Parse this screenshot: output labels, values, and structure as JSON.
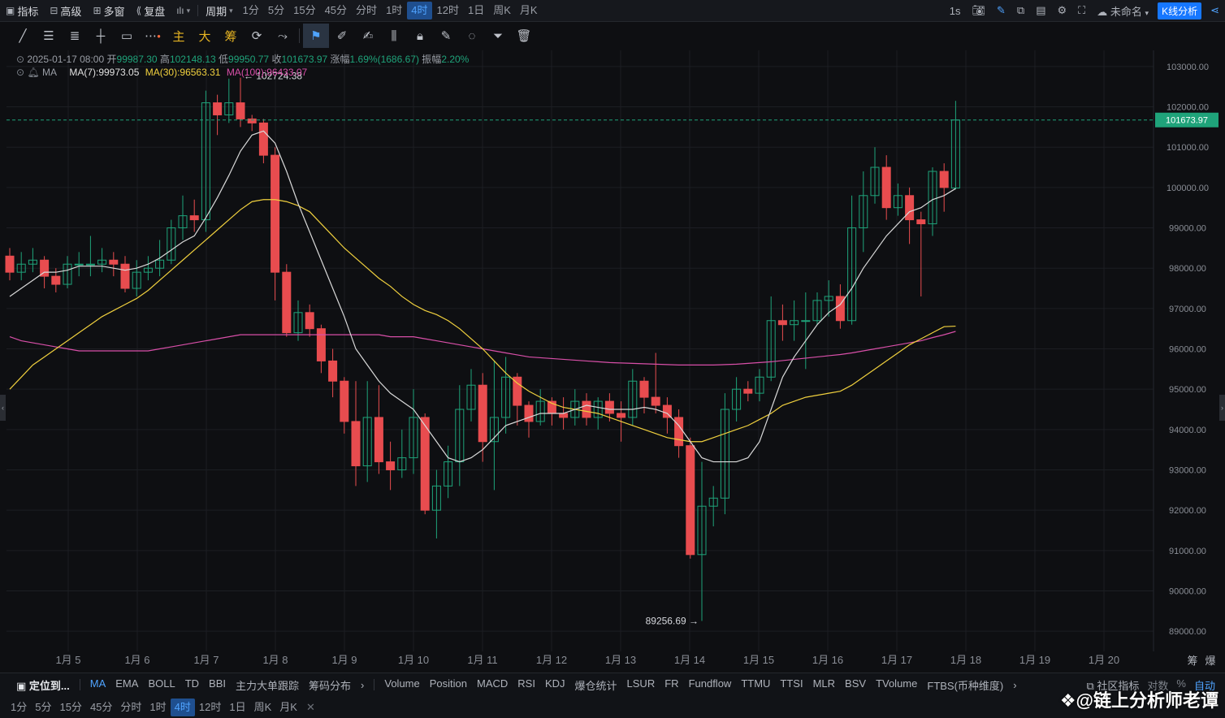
{
  "topbar": {
    "left_items": [
      {
        "icon": "indicator-icon",
        "label": "指标"
      },
      {
        "icon": "advanced-icon",
        "label": "高级"
      },
      {
        "icon": "multi-window-icon",
        "label": "多窗"
      },
      {
        "icon": "replay-icon",
        "label": "复盘"
      },
      {
        "icon": "chart-type-icon",
        "label": ""
      },
      {
        "icon": "",
        "label": "周期"
      }
    ],
    "intervals": [
      "1分",
      "5分",
      "15分",
      "45分",
      "分时",
      "1时",
      "4时",
      "12时",
      "1日",
      "周K",
      "月K"
    ],
    "active_interval": "4时",
    "right_label_1s": "1s",
    "unnamed_label": "未命名",
    "kline_button": "K线分析"
  },
  "drawtools": {
    "text_tools": [
      "主",
      "大",
      "筹"
    ]
  },
  "info": {
    "datetime": "2025-01-17 08:00",
    "open_label": "开",
    "open": "99987.30",
    "high_label": "高",
    "high": "102148.13",
    "low_label": "低",
    "low": "99950.77",
    "close_label": "收",
    "close": "101673.97",
    "change_label": "涨幅",
    "change": "1.69%(1686.67)",
    "amp_label": "振幅",
    "amp": "2.20%",
    "ma_label": "MA",
    "ma7": "MA(7):99973.05",
    "ma30": "MA(30):96563.31",
    "ma100": "MA(100):96433.07"
  },
  "chart_data": {
    "type": "candlestick",
    "y_ticks": [
      103000,
      102000,
      101000,
      100000,
      99000,
      98000,
      97000,
      96000,
      95000,
      94000,
      93000,
      92000,
      91000,
      90000,
      89000
    ],
    "ylim": [
      88500,
      103400
    ],
    "x_labels": [
      "1月 5",
      "1月 6",
      "1月 7",
      "1月 8",
      "1月 9",
      "1月 10",
      "1月 11",
      "1月 12",
      "1月 13",
      "1月 14",
      "1月 15",
      "1月 16",
      "1月 17",
      "1月 18",
      "1月 19",
      "1月 20"
    ],
    "current_price": "101673.97",
    "high_annotation": "← 102724.38",
    "low_annotation": "89256.69 →",
    "candles": [
      [
        98300,
        97900,
        98500,
        97700
      ],
      [
        97900,
        98100,
        98400,
        97700
      ],
      [
        98100,
        98200,
        98500,
        97900
      ],
      [
        98200,
        97800,
        98300,
        97500
      ],
      [
        97800,
        97600,
        98000,
        97400
      ],
      [
        97600,
        98100,
        98300,
        97500
      ],
      [
        98100,
        98100,
        98400,
        97800
      ],
      [
        98100,
        98100,
        98800,
        97800
      ],
      [
        98100,
        98200,
        98500,
        97900
      ],
      [
        98200,
        98100,
        98400,
        97800
      ],
      [
        98100,
        97500,
        98300,
        97400
      ],
      [
        97500,
        97900,
        98200,
        97300
      ],
      [
        97900,
        98000,
        98300,
        97700
      ],
      [
        98000,
        98200,
        98700,
        97800
      ],
      [
        98200,
        99000,
        99200,
        98100
      ],
      [
        99000,
        99300,
        99800,
        98700
      ],
      [
        99300,
        99200,
        99700,
        98900
      ],
      [
        99200,
        102100,
        102400,
        98900
      ],
      [
        102100,
        101800,
        102300,
        101300
      ],
      [
        101800,
        102100,
        102700,
        101600
      ],
      [
        102100,
        101700,
        102724,
        101500
      ],
      [
        101700,
        101600,
        101800,
        101400
      ],
      [
        101600,
        100800,
        101700,
        100600
      ],
      [
        100800,
        97900,
        101000,
        97200
      ],
      [
        97900,
        96400,
        98100,
        96300
      ],
      [
        96400,
        96900,
        97200,
        96200
      ],
      [
        96900,
        96500,
        97100,
        96300
      ],
      [
        96500,
        95700,
        96600,
        95400
      ],
      [
        95700,
        95200,
        96000,
        94800
      ],
      [
        95200,
        94200,
        95300,
        93900
      ],
      [
        94200,
        93100,
        95200,
        92600
      ],
      [
        93100,
        94300,
        95200,
        92700
      ],
      [
        94300,
        93200,
        95100,
        92900
      ],
      [
        93200,
        93000,
        93700,
        92500
      ],
      [
        93000,
        93300,
        94000,
        92800
      ],
      [
        93300,
        94300,
        95000,
        92900
      ],
      [
        94300,
        92000,
        94400,
        91900
      ],
      [
        92000,
        92600,
        93000,
        91300
      ],
      [
        92600,
        93200,
        93600,
        92300
      ],
      [
        93200,
        94500,
        95100,
        92600
      ],
      [
        94500,
        95100,
        95500,
        94200
      ],
      [
        95100,
        93700,
        95400,
        93200
      ],
      [
        93700,
        94300,
        95700,
        92500
      ],
      [
        94300,
        95300,
        95800,
        93900
      ],
      [
        95300,
        94600,
        95400,
        94100
      ],
      [
        94600,
        94200,
        94700,
        93800
      ],
      [
        94200,
        94700,
        95000,
        94100
      ],
      [
        94700,
        94400,
        94800,
        94100
      ],
      [
        94400,
        94300,
        94800,
        94000
      ],
      [
        94300,
        94700,
        95000,
        94100
      ],
      [
        94700,
        94300,
        94900,
        94100
      ],
      [
        94300,
        94700,
        94800,
        94000
      ],
      [
        94700,
        94400,
        94900,
        94200
      ],
      [
        94400,
        94300,
        94700,
        93700
      ],
      [
        94300,
        95200,
        95500,
        94100
      ],
      [
        95200,
        94800,
        95300,
        94400
      ],
      [
        94800,
        94600,
        95900,
        94400
      ],
      [
        94600,
        94300,
        94800,
        93900
      ],
      [
        94300,
        93600,
        94500,
        93300
      ],
      [
        93600,
        90900,
        93800,
        90800
      ],
      [
        90900,
        92100,
        93200,
        89256
      ],
      [
        92100,
        92300,
        92600,
        91600
      ],
      [
        92300,
        94500,
        94900,
        91900
      ],
      [
        94500,
        95000,
        95300,
        94200
      ],
      [
        95000,
        94900,
        95200,
        94700
      ],
      [
        94900,
        95300,
        95500,
        94700
      ],
      [
        95300,
        96700,
        97300,
        95200
      ],
      [
        96700,
        96600,
        97100,
        96200
      ],
      [
        96600,
        96700,
        97200,
        96200
      ],
      [
        96700,
        96700,
        97400,
        95500
      ],
      [
        96700,
        97200,
        97400,
        96600
      ],
      [
        97200,
        97300,
        97700,
        96800
      ],
      [
        97300,
        96700,
        97600,
        96500
      ],
      [
        96700,
        99000,
        99800,
        96600
      ],
      [
        99000,
        99800,
        100400,
        98400
      ],
      [
        99800,
        100500,
        101000,
        99600
      ],
      [
        100500,
        99500,
        100800,
        99200
      ],
      [
        99500,
        99800,
        100100,
        99300
      ],
      [
        99800,
        99200,
        100000,
        98600
      ],
      [
        99200,
        99100,
        99400,
        97300
      ],
      [
        99100,
        100400,
        100500,
        98800
      ],
      [
        100400,
        100000,
        100600,
        99400
      ],
      [
        99987,
        101674,
        102148,
        99950
      ]
    ],
    "ma7": [
      97300,
      97500,
      97700,
      97900,
      97900,
      97950,
      98050,
      98050,
      98050,
      98000,
      97950,
      98000,
      98100,
      98250,
      98450,
      98650,
      98800,
      99250,
      99750,
      100300,
      100900,
      101300,
      101400,
      101100,
      100400,
      99600,
      98900,
      98200,
      97500,
      96800,
      96000,
      95600,
      95200,
      94900,
      94700,
      94500,
      94100,
      93700,
      93300,
      93200,
      93300,
      93500,
      93800,
      94100,
      94200,
      94300,
      94400,
      94400,
      94400,
      94500,
      94600,
      94550,
      94500,
      94500,
      94500,
      94550,
      94500,
      94400,
      94100,
      93700,
      93300,
      93200,
      93200,
      93200,
      93300,
      93700,
      94500,
      95300,
      95800,
      96200,
      96600,
      96900,
      97100,
      97500,
      98000,
      98400,
      98800,
      99100,
      99400,
      99500,
      99700,
      99800,
      99973
    ],
    "ma30": [
      95000,
      95300,
      95600,
      95800,
      96000,
      96200,
      96400,
      96600,
      96800,
      96950,
      97100,
      97250,
      97450,
      97700,
      97950,
      98200,
      98450,
      98700,
      98950,
      99200,
      99450,
      99650,
      99700,
      99700,
      99650,
      99550,
      99400,
      99100,
      98800,
      98500,
      98250,
      98000,
      97750,
      97550,
      97300,
      97100,
      96950,
      96850,
      96700,
      96500,
      96250,
      96000,
      95700,
      95400,
      95150,
      94950,
      94800,
      94650,
      94550,
      94500,
      94450,
      94400,
      94300,
      94200,
      94100,
      94000,
      93900,
      93800,
      93750,
      93700,
      93700,
      93800,
      93900,
      94000,
      94100,
      94250,
      94400,
      94600,
      94700,
      94800,
      94850,
      94900,
      94950,
      95100,
      95300,
      95500,
      95700,
      95900,
      96100,
      96250,
      96400,
      96550,
      96563
    ],
    "ma100": [
      96300,
      96200,
      96150,
      96100,
      96050,
      96000,
      95950,
      95950,
      95950,
      95950,
      95950,
      95950,
      95950,
      96000,
      96050,
      96100,
      96150,
      96200,
      96250,
      96300,
      96350,
      96350,
      96350,
      96350,
      96350,
      96350,
      96350,
      96350,
      96350,
      96350,
      96350,
      96350,
      96350,
      96300,
      96300,
      96300,
      96250,
      96200,
      96150,
      96100,
      96050,
      96000,
      95950,
      95900,
      95850,
      95800,
      95780,
      95760,
      95740,
      95720,
      95700,
      95680,
      95660,
      95650,
      95640,
      95630,
      95620,
      95610,
      95600,
      95600,
      95600,
      95600,
      95610,
      95620,
      95640,
      95660,
      95680,
      95710,
      95740,
      95770,
      95800,
      95830,
      95860,
      95900,
      95950,
      96000,
      96050,
      96100,
      96150,
      96200,
      96280,
      96350,
      96433
    ]
  },
  "bottom_bar": {
    "locate_label": "定位到...",
    "main_indicators": [
      "MA",
      "EMA",
      "BOLL",
      "TD",
      "BBI",
      "主力大单跟踪",
      "筹码分布"
    ],
    "sub_indicators": [
      "Volume",
      "Position",
      "MACD",
      "RSI",
      "KDJ",
      "爆仓统计",
      "LSUR",
      "FR",
      "Fundflow",
      "TTMU",
      "TTSI",
      "MLR",
      "BSV",
      "TVolume",
      "FTBS(币种维度)"
    ],
    "community_label": "社区指标",
    "log_label": "对数",
    "percent_label": "%",
    "auto_label": "自动",
    "side_right_labels": [
      "筹",
      "爆"
    ]
  },
  "bottom_intervals": [
    "1分",
    "5分",
    "15分",
    "45分",
    "分时",
    "1时",
    "4时",
    "12时",
    "1日",
    "周K",
    "月K"
  ],
  "watermark": "@链上分析师老谭",
  "colors": {
    "up": "#1fa37a",
    "down": "#e84c4f",
    "ma7": "#d9d9d9",
    "ma30": "#f0d03e",
    "ma100": "#d84fa8",
    "accent": "#4fa3ff"
  }
}
